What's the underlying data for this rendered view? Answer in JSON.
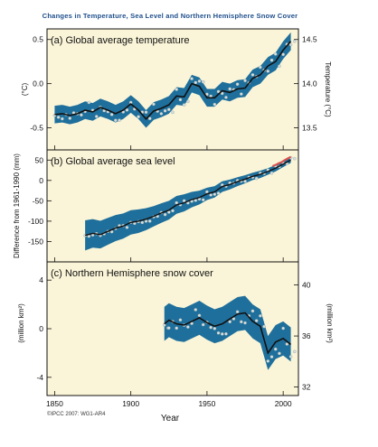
{
  "chart_data": {
    "type": "line",
    "title": "Changes in Temperature, Sea Level and Northern Hemisphere Snow Cover",
    "xlabel": "Year",
    "xlim": [
      1845,
      2010
    ],
    "x_ticks": [
      "1850",
      "1900",
      "1950",
      "2000"
    ],
    "credit": "©IPCC 2007: WG1-AR4",
    "panels": [
      {
        "id": "a",
        "title": "(a) Global average temperature",
        "ylabel_left": "(°C)",
        "ylabel_right": "Temperature (°C)",
        "ylim": [
          -0.75,
          0.62
        ],
        "left_ticks": [
          "0.5",
          "0.0",
          "-0.5"
        ],
        "left_tick_values": [
          0.5,
          0.0,
          -0.5
        ],
        "right_ticks": [
          "14.5",
          "14.0",
          "13.5"
        ],
        "series": {
          "x": [
            1850,
            1855,
            1860,
            1865,
            1870,
            1875,
            1880,
            1885,
            1890,
            1895,
            1900,
            1905,
            1910,
            1915,
            1920,
            1925,
            1930,
            1935,
            1940,
            1945,
            1950,
            1955,
            1960,
            1965,
            1970,
            1975,
            1980,
            1985,
            1990,
            1995,
            2000,
            2005
          ],
          "values": [
            -0.35,
            -0.34,
            -0.36,
            -0.34,
            -0.3,
            -0.32,
            -0.27,
            -0.3,
            -0.34,
            -0.3,
            -0.23,
            -0.3,
            -0.4,
            -0.31,
            -0.28,
            -0.24,
            -0.14,
            -0.15,
            0.0,
            -0.03,
            -0.16,
            -0.16,
            -0.08,
            -0.1,
            -0.06,
            -0.05,
            0.06,
            0.1,
            0.2,
            0.25,
            0.38,
            0.48
          ],
          "band": 0.1
        }
      },
      {
        "id": "b",
        "title": "(b) Global average sea level",
        "ylabel_left": "Difference from 1961-1990 (mm)",
        "ylim": [
          -200,
          75
        ],
        "left_ticks": [
          "50",
          "0",
          "-50",
          "-100",
          "-150"
        ],
        "left_tick_values": [
          50,
          0,
          -50,
          -100,
          -150
        ],
        "series": {
          "x": [
            1870,
            1875,
            1880,
            1885,
            1890,
            1895,
            1900,
            1905,
            1910,
            1915,
            1920,
            1925,
            1930,
            1935,
            1940,
            1945,
            1950,
            1955,
            1960,
            1965,
            1970,
            1975,
            1980,
            1985,
            1990,
            1995,
            2000,
            2005
          ],
          "values": [
            -135,
            -130,
            -133,
            -125,
            -117,
            -112,
            -103,
            -100,
            -95,
            -88,
            -80,
            -73,
            -60,
            -55,
            -47,
            -42,
            -33,
            -28,
            -15,
            -10,
            -3,
            3,
            10,
            15,
            22,
            30,
            40,
            50
          ],
          "band_upper_offset": [
            37,
            35,
            34,
            33,
            32,
            31,
            30,
            29,
            27,
            25,
            24,
            23,
            22,
            21,
            19,
            17,
            15,
            14,
            13,
            12,
            11,
            10,
            9,
            9,
            8,
            8,
            7,
            7
          ],
          "satellite": {
            "x": [
              1993,
              1995,
              1997,
              1999,
              2001,
              2003,
              2005
            ],
            "values": [
              35,
              38,
              42,
              45,
              50,
              54,
              58
            ]
          }
        }
      },
      {
        "id": "c",
        "title": "(c) Northern Hemisphere snow cover",
        "ylabel_left": "(million km²)",
        "ylabel_right": "(million km²)",
        "ylim": [
          -5.5,
          5.5
        ],
        "left_ticks": [
          "4",
          "0",
          "-4"
        ],
        "left_tick_values": [
          4,
          0,
          -4
        ],
        "right_ticks": [
          "40",
          "36",
          "32"
        ],
        "right_tick_values": [
          3.6,
          -0.6,
          -4.8
        ],
        "series": {
          "x": [
            1922,
            1925,
            1930,
            1935,
            1940,
            1945,
            1950,
            1955,
            1960,
            1965,
            1970,
            1975,
            1980,
            1985,
            1990,
            1995,
            2000,
            2005
          ],
          "values": [
            0.4,
            0.7,
            0.4,
            0.3,
            0.6,
            0.9,
            0.5,
            0.2,
            0.4,
            0.8,
            1.2,
            1.3,
            0.6,
            0.2,
            -2.0,
            -1.1,
            -0.8,
            -1.3
          ],
          "band": 1.4
        }
      }
    ]
  }
}
